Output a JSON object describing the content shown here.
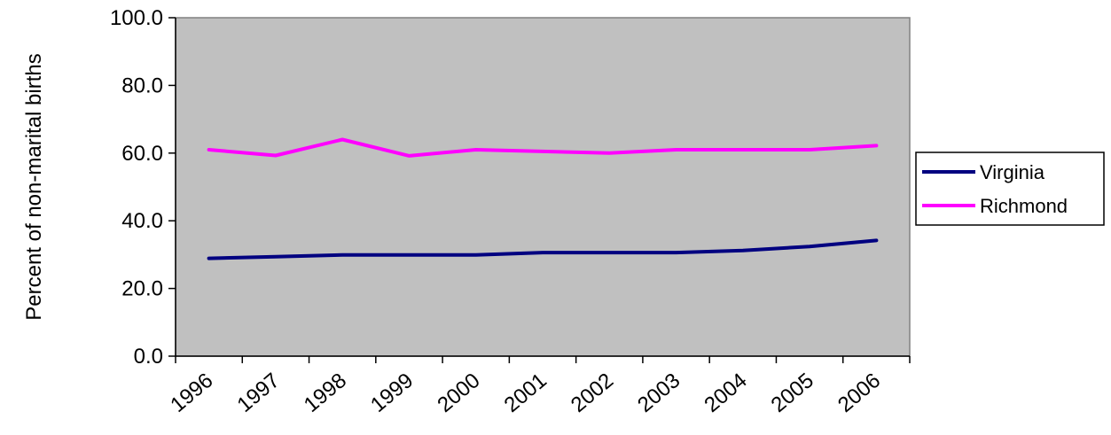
{
  "chart_data": {
    "type": "line",
    "title": "",
    "xlabel": "",
    "ylabel": "Percent of non-marital births",
    "ylim": [
      0,
      100
    ],
    "y_ticks": [
      0,
      20,
      40,
      60,
      80,
      100
    ],
    "y_tick_labels": [
      "0.0",
      "20.0",
      "40.0",
      "60.0",
      "80.0",
      "100.0"
    ],
    "categories": [
      "1996",
      "1997",
      "1998",
      "1999",
      "2000",
      "2001",
      "2002",
      "2003",
      "2004",
      "2005",
      "2006"
    ],
    "series": [
      {
        "name": "Virginia",
        "color": "#000080",
        "values": [
          28.9,
          29.4,
          29.9,
          29.9,
          29.9,
          30.6,
          30.6,
          30.6,
          31.2,
          32.4,
          34.2
        ]
      },
      {
        "name": "Richmond",
        "color": "#FF00FF",
        "values": [
          61.0,
          59.3,
          64.0,
          59.2,
          61.0,
          60.5,
          60.0,
          61.0,
          61.0,
          61.0,
          62.2
        ]
      }
    ],
    "grid": false,
    "plot_background": "#C0C0C0",
    "legend_position": "right"
  }
}
